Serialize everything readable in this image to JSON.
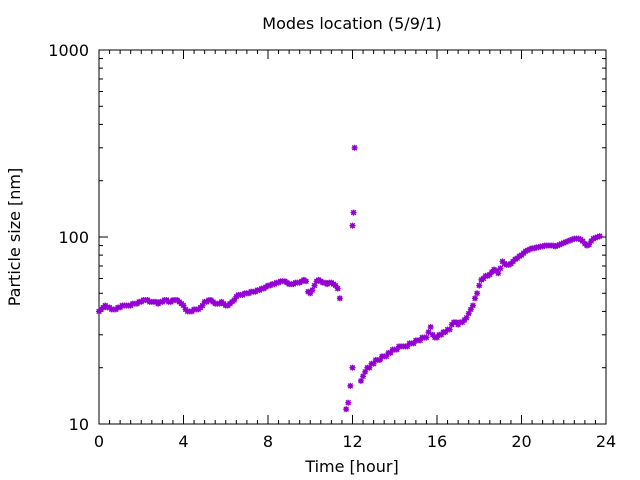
{
  "chart_data": {
    "type": "scatter",
    "title": "Modes location (5/9/1)",
    "xlabel": "Time [hour]",
    "ylabel": "Particle size [nm]",
    "xlim": [
      0,
      24
    ],
    "ylim": [
      10,
      1000
    ],
    "yscale": "log",
    "xticks": [
      "0",
      "4",
      "8",
      "12",
      "16",
      "20",
      "24"
    ],
    "yticks": [
      "10",
      "100",
      "1000"
    ],
    "grid": false,
    "legend": "none",
    "marker_color": "#9400D3",
    "series": [
      {
        "points": [
          [
            0.0,
            40
          ],
          [
            0.1,
            41
          ],
          [
            0.2,
            42
          ],
          [
            0.3,
            43
          ],
          [
            0.4,
            42
          ],
          [
            0.5,
            42
          ],
          [
            0.6,
            41
          ],
          [
            0.7,
            41
          ],
          [
            0.8,
            41
          ],
          [
            0.9,
            42
          ],
          [
            1.0,
            42
          ],
          [
            1.1,
            43
          ],
          [
            1.2,
            43
          ],
          [
            1.3,
            43
          ],
          [
            1.4,
            43
          ],
          [
            1.5,
            43
          ],
          [
            1.6,
            44
          ],
          [
            1.7,
            44
          ],
          [
            1.8,
            44
          ],
          [
            1.9,
            45
          ],
          [
            2.0,
            45
          ],
          [
            2.1,
            46
          ],
          [
            2.2,
            46
          ],
          [
            2.3,
            46
          ],
          [
            2.4,
            45
          ],
          [
            2.5,
            45
          ],
          [
            2.6,
            45
          ],
          [
            2.7,
            45
          ],
          [
            2.8,
            44
          ],
          [
            2.9,
            45
          ],
          [
            3.0,
            45
          ],
          [
            3.1,
            46
          ],
          [
            3.2,
            46
          ],
          [
            3.3,
            45
          ],
          [
            3.4,
            45
          ],
          [
            3.5,
            46
          ],
          [
            3.6,
            46
          ],
          [
            3.7,
            46
          ],
          [
            3.8,
            45
          ],
          [
            3.9,
            44
          ],
          [
            4.0,
            43
          ],
          [
            4.1,
            41
          ],
          [
            4.2,
            40
          ],
          [
            4.3,
            40
          ],
          [
            4.4,
            40
          ],
          [
            4.5,
            41
          ],
          [
            4.6,
            41
          ],
          [
            4.7,
            41
          ],
          [
            4.8,
            42
          ],
          [
            4.9,
            43
          ],
          [
            5.0,
            45
          ],
          [
            5.1,
            45
          ],
          [
            5.2,
            46
          ],
          [
            5.3,
            46
          ],
          [
            5.4,
            45
          ],
          [
            5.5,
            44
          ],
          [
            5.6,
            44
          ],
          [
            5.7,
            44
          ],
          [
            5.8,
            45
          ],
          [
            5.9,
            44
          ],
          [
            6.0,
            43
          ],
          [
            6.1,
            43
          ],
          [
            6.2,
            44
          ],
          [
            6.3,
            45
          ],
          [
            6.4,
            46
          ],
          [
            6.5,
            48
          ],
          [
            6.6,
            49
          ],
          [
            6.7,
            49
          ],
          [
            6.8,
            49
          ],
          [
            6.9,
            50
          ],
          [
            7.0,
            50
          ],
          [
            7.1,
            50
          ],
          [
            7.2,
            51
          ],
          [
            7.3,
            51
          ],
          [
            7.4,
            51
          ],
          [
            7.5,
            52
          ],
          [
            7.6,
            52
          ],
          [
            7.7,
            53
          ],
          [
            7.8,
            53
          ],
          [
            7.9,
            54
          ],
          [
            8.0,
            55
          ],
          [
            8.1,
            55
          ],
          [
            8.2,
            56
          ],
          [
            8.3,
            56
          ],
          [
            8.4,
            57
          ],
          [
            8.5,
            57
          ],
          [
            8.6,
            58
          ],
          [
            8.7,
            58
          ],
          [
            8.8,
            58
          ],
          [
            8.9,
            57
          ],
          [
            9.0,
            56
          ],
          [
            9.1,
            56
          ],
          [
            9.2,
            56
          ],
          [
            9.3,
            57
          ],
          [
            9.4,
            57
          ],
          [
            9.5,
            57
          ],
          [
            9.6,
            58
          ],
          [
            9.7,
            59
          ],
          [
            9.8,
            58
          ],
          [
            9.9,
            51
          ],
          [
            10.0,
            50
          ],
          [
            10.1,
            52
          ],
          [
            10.2,
            55
          ],
          [
            10.3,
            58
          ],
          [
            10.4,
            59
          ],
          [
            10.5,
            58
          ],
          [
            10.6,
            57
          ],
          [
            10.7,
            57
          ],
          [
            10.8,
            56
          ],
          [
            10.9,
            57
          ],
          [
            11.0,
            57
          ],
          [
            11.1,
            56
          ],
          [
            11.2,
            55
          ],
          [
            11.3,
            53
          ],
          [
            11.4,
            47
          ],
          [
            11.7,
            12
          ],
          [
            11.8,
            13
          ],
          [
            11.9,
            16
          ],
          [
            12.0,
            20
          ],
          [
            12.0,
            115
          ],
          [
            12.05,
            135
          ],
          [
            12.1,
            300
          ],
          [
            12.4,
            17
          ],
          [
            12.5,
            18
          ],
          [
            12.6,
            19
          ],
          [
            12.7,
            20
          ],
          [
            12.8,
            20
          ],
          [
            12.9,
            21
          ],
          [
            13.0,
            21
          ],
          [
            13.1,
            22
          ],
          [
            13.2,
            22
          ],
          [
            13.3,
            22
          ],
          [
            13.4,
            23
          ],
          [
            13.5,
            23
          ],
          [
            13.6,
            23
          ],
          [
            13.7,
            24
          ],
          [
            13.8,
            24
          ],
          [
            13.9,
            25
          ],
          [
            14.0,
            25
          ],
          [
            14.1,
            25
          ],
          [
            14.2,
            26
          ],
          [
            14.3,
            26
          ],
          [
            14.4,
            26
          ],
          [
            14.5,
            26
          ],
          [
            14.6,
            26
          ],
          [
            14.7,
            27
          ],
          [
            14.8,
            27
          ],
          [
            14.9,
            27
          ],
          [
            15.0,
            28
          ],
          [
            15.1,
            28
          ],
          [
            15.2,
            28
          ],
          [
            15.3,
            29
          ],
          [
            15.4,
            29
          ],
          [
            15.5,
            29
          ],
          [
            15.6,
            31
          ],
          [
            15.7,
            33
          ],
          [
            15.8,
            30
          ],
          [
            15.9,
            29
          ],
          [
            16.0,
            29
          ],
          [
            16.1,
            30
          ],
          [
            16.2,
            30
          ],
          [
            16.3,
            31
          ],
          [
            16.4,
            31
          ],
          [
            16.5,
            32
          ],
          [
            16.6,
            32
          ],
          [
            16.7,
            34
          ],
          [
            16.8,
            35
          ],
          [
            16.9,
            35
          ],
          [
            17.0,
            34
          ],
          [
            17.1,
            35
          ],
          [
            17.2,
            35
          ],
          [
            17.3,
            36
          ],
          [
            17.4,
            37
          ],
          [
            17.5,
            39
          ],
          [
            17.6,
            41
          ],
          [
            17.7,
            43
          ],
          [
            17.8,
            47
          ],
          [
            17.9,
            50
          ],
          [
            18.0,
            55
          ],
          [
            18.1,
            59
          ],
          [
            18.2,
            60
          ],
          [
            18.3,
            62
          ],
          [
            18.4,
            62
          ],
          [
            18.5,
            63
          ],
          [
            18.6,
            65
          ],
          [
            18.7,
            67
          ],
          [
            18.8,
            66
          ],
          [
            18.9,
            64
          ],
          [
            19.0,
            68
          ],
          [
            19.1,
            74
          ],
          [
            19.2,
            72
          ],
          [
            19.3,
            71
          ],
          [
            19.4,
            71
          ],
          [
            19.5,
            72
          ],
          [
            19.6,
            74
          ],
          [
            19.7,
            76
          ],
          [
            19.8,
            77
          ],
          [
            19.9,
            79
          ],
          [
            20.0,
            80
          ],
          [
            20.1,
            82
          ],
          [
            20.2,
            84
          ],
          [
            20.3,
            85
          ],
          [
            20.4,
            86
          ],
          [
            20.5,
            87
          ],
          [
            20.6,
            87
          ],
          [
            20.7,
            88
          ],
          [
            20.8,
            88
          ],
          [
            20.9,
            89
          ],
          [
            21.0,
            89
          ],
          [
            21.1,
            90
          ],
          [
            21.2,
            90
          ],
          [
            21.3,
            90
          ],
          [
            21.4,
            90
          ],
          [
            21.5,
            90
          ],
          [
            21.6,
            89
          ],
          [
            21.7,
            90
          ],
          [
            21.8,
            91
          ],
          [
            21.9,
            92
          ],
          [
            22.0,
            93
          ],
          [
            22.1,
            94
          ],
          [
            22.2,
            95
          ],
          [
            22.3,
            96
          ],
          [
            22.4,
            97
          ],
          [
            22.5,
            98
          ],
          [
            22.6,
            98
          ],
          [
            22.7,
            98
          ],
          [
            22.8,
            97
          ],
          [
            22.9,
            95
          ],
          [
            23.0,
            92
          ],
          [
            23.1,
            90
          ],
          [
            23.2,
            91
          ],
          [
            23.3,
            95
          ],
          [
            23.4,
            98
          ],
          [
            23.5,
            99
          ],
          [
            23.6,
            100
          ],
          [
            23.7,
            101
          ]
        ]
      }
    ]
  }
}
